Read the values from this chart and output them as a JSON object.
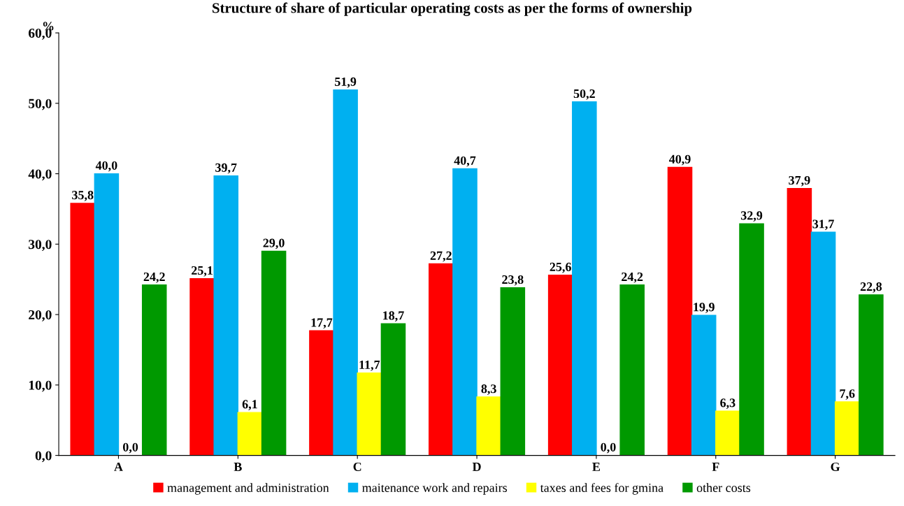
{
  "chart_data": {
    "type": "bar",
    "title": "Structure of share of particular operating costs as per the forms of ownership",
    "ylabel": "%",
    "categories": [
      "A",
      "B",
      "C",
      "D",
      "E",
      "F",
      "G"
    ],
    "series": [
      {
        "name": "management and administration",
        "color": "#ff0000",
        "values": [
          35.8,
          25.1,
          17.7,
          27.2,
          25.6,
          40.9,
          37.9
        ],
        "value_labels": [
          "35,8",
          "25,1",
          "17,7",
          "27,2",
          "25,6",
          "40,9",
          "37,9"
        ]
      },
      {
        "name": "maitenance work and repairs",
        "color": "#00b0f0",
        "values": [
          40.0,
          39.7,
          51.9,
          40.7,
          50.2,
          19.9,
          31.7
        ],
        "value_labels": [
          "40,0",
          "39,7",
          "51,9",
          "40,7",
          "50,2",
          "19,9",
          "31,7"
        ]
      },
      {
        "name": "taxes and fees for gmina",
        "color": "#ffff00",
        "values": [
          0.0,
          6.1,
          11.7,
          8.3,
          0.0,
          6.3,
          7.6
        ],
        "value_labels": [
          "0,0",
          "6,1",
          "11,7",
          "8,3",
          "0,0",
          "6,3",
          "7,6"
        ]
      },
      {
        "name": "other costs",
        "color": "#009900",
        "values": [
          24.2,
          29.0,
          18.7,
          23.8,
          24.2,
          32.9,
          22.8
        ],
        "value_labels": [
          "24,2",
          "29,0",
          "18,7",
          "23,8",
          "24,2",
          "32,9",
          "22,8"
        ]
      }
    ],
    "ylim": [
      0,
      60
    ],
    "yticks": [
      {
        "value": 0,
        "label": "0,0"
      },
      {
        "value": 10,
        "label": "10,0"
      },
      {
        "value": 20,
        "label": "20,0"
      },
      {
        "value": 30,
        "label": "30,0"
      },
      {
        "value": 40,
        "label": "40,0"
      },
      {
        "value": 50,
        "label": "50,0"
      },
      {
        "value": 60,
        "label": "60,0"
      }
    ],
    "legend": "bottom",
    "grid": false
  }
}
